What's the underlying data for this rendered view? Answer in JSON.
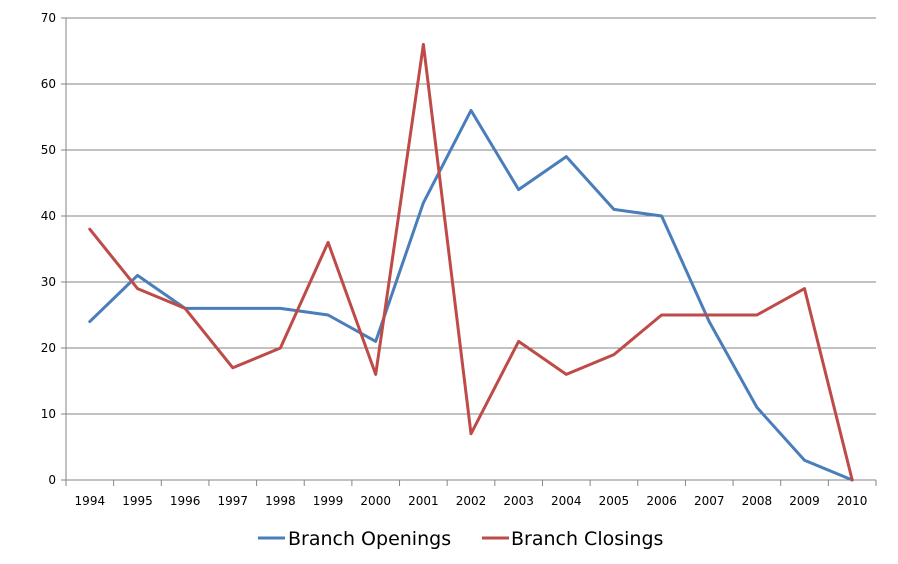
{
  "chart_data": {
    "type": "line",
    "title": "",
    "xlabel": "",
    "ylabel": "",
    "categories": [
      "1994",
      "1995",
      "1996",
      "1997",
      "1998",
      "1999",
      "2000",
      "2001",
      "2002",
      "2003",
      "2004",
      "2005",
      "2006",
      "2007",
      "2008",
      "2009",
      "2010"
    ],
    "ylim": [
      0,
      70
    ],
    "yticks": [
      0,
      10,
      20,
      30,
      40,
      50,
      60,
      70
    ],
    "grid": true,
    "legend_position": "bottom",
    "series": [
      {
        "name": "Branch Openings",
        "color": "#4a7ebb",
        "values": [
          24,
          31,
          26,
          26,
          26,
          25,
          21,
          42,
          56,
          44,
          49,
          41,
          40,
          24,
          11,
          3,
          0
        ]
      },
      {
        "name": "Branch Closings",
        "color": "#be4b48",
        "values": [
          38,
          29,
          26,
          17,
          20,
          36,
          16,
          66,
          7,
          21,
          16,
          19,
          25,
          25,
          25,
          29,
          0
        ]
      }
    ]
  }
}
